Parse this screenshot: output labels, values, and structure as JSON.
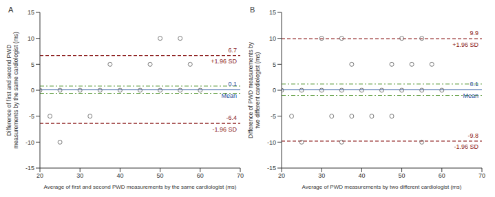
{
  "chart_data": [
    {
      "type": "scatter",
      "title": "A",
      "xlabel": "Average of first and second PWD measurements by the same cardiologist (ms)",
      "ylabel": "Difference of first and second PWD measurements by the same cardiologist (ms)",
      "xlim": [
        20,
        70
      ],
      "xticks": [
        20,
        30,
        40,
        50,
        60,
        70
      ],
      "ylim": [
        -15,
        15
      ],
      "yticks": [
        -15,
        -10,
        -5,
        0,
        5,
        10,
        15
      ],
      "x": [
        20,
        22.5,
        25,
        25,
        30,
        32.5,
        35,
        37.5,
        40,
        45,
        47.5,
        50,
        50,
        55,
        55,
        57.5,
        60
      ],
      "values": [
        0,
        -5,
        -10,
        0,
        0,
        -5,
        0,
        5,
        0,
        0,
        5,
        10,
        0,
        10,
        0,
        5,
        0
      ],
      "color": "#777777",
      "marker": "circle_open",
      "mean": {
        "label": "Mean",
        "value": 0.1,
        "color": "#1f4e9c",
        "line_style": "solid"
      },
      "upper_loa": {
        "label": "+1.96 SD",
        "value": 6.7,
        "color": "#8b1a1a",
        "line_style": "dashed"
      },
      "lower_loa": {
        "label": "-1.96 SD",
        "value": -6.4,
        "color": "#8b1a1a",
        "line_style": "dashed"
      },
      "mean_ci": {
        "values": [
          -0.6,
          0.8
        ],
        "color": "#5a9a3a",
        "line_style": "dashdot"
      }
    },
    {
      "type": "scatter",
      "title": "B",
      "xlabel": "Average of PWD measurements by two different cardiologist (ms)",
      "ylabel": "Difference of PWD measurements by two different cardiologist (ms)",
      "xlim": [
        20,
        70
      ],
      "xticks": [
        20,
        30,
        40,
        50,
        60,
        70
      ],
      "ylim": [
        -15,
        15
      ],
      "yticks": [
        -15,
        -10,
        -5,
        0,
        5,
        10,
        15
      ],
      "x": [
        20,
        22.5,
        25,
        25,
        30,
        30,
        32.5,
        35,
        35,
        35,
        37.5,
        37.5,
        40,
        42.5,
        45,
        47.5,
        47.5,
        50,
        50,
        52.5,
        55,
        55,
        55,
        57.5,
        60
      ],
      "values": [
        0,
        -5,
        -10,
        0,
        10,
        0,
        -5,
        10,
        -10,
        0,
        5,
        -5,
        0,
        -5,
        0,
        5,
        -5,
        10,
        0,
        5,
        10,
        -10,
        0,
        5,
        0
      ],
      "color": "#777777",
      "marker": "circle_open",
      "mean": {
        "label": "Mean",
        "value": 0.1,
        "color": "#1f4e9c",
        "line_style": "solid"
      },
      "upper_loa": {
        "label": "+1.96 SD",
        "value": 9.9,
        "color": "#8b1a1a",
        "line_style": "dashed"
      },
      "lower_loa": {
        "label": "-1.96 SD",
        "value": -9.8,
        "color": "#8b1a1a",
        "line_style": "dashed"
      },
      "mean_ci": {
        "values": [
          -1.0,
          1.2
        ],
        "color": "#5a9a3a",
        "line_style": "dashdot"
      }
    }
  ]
}
